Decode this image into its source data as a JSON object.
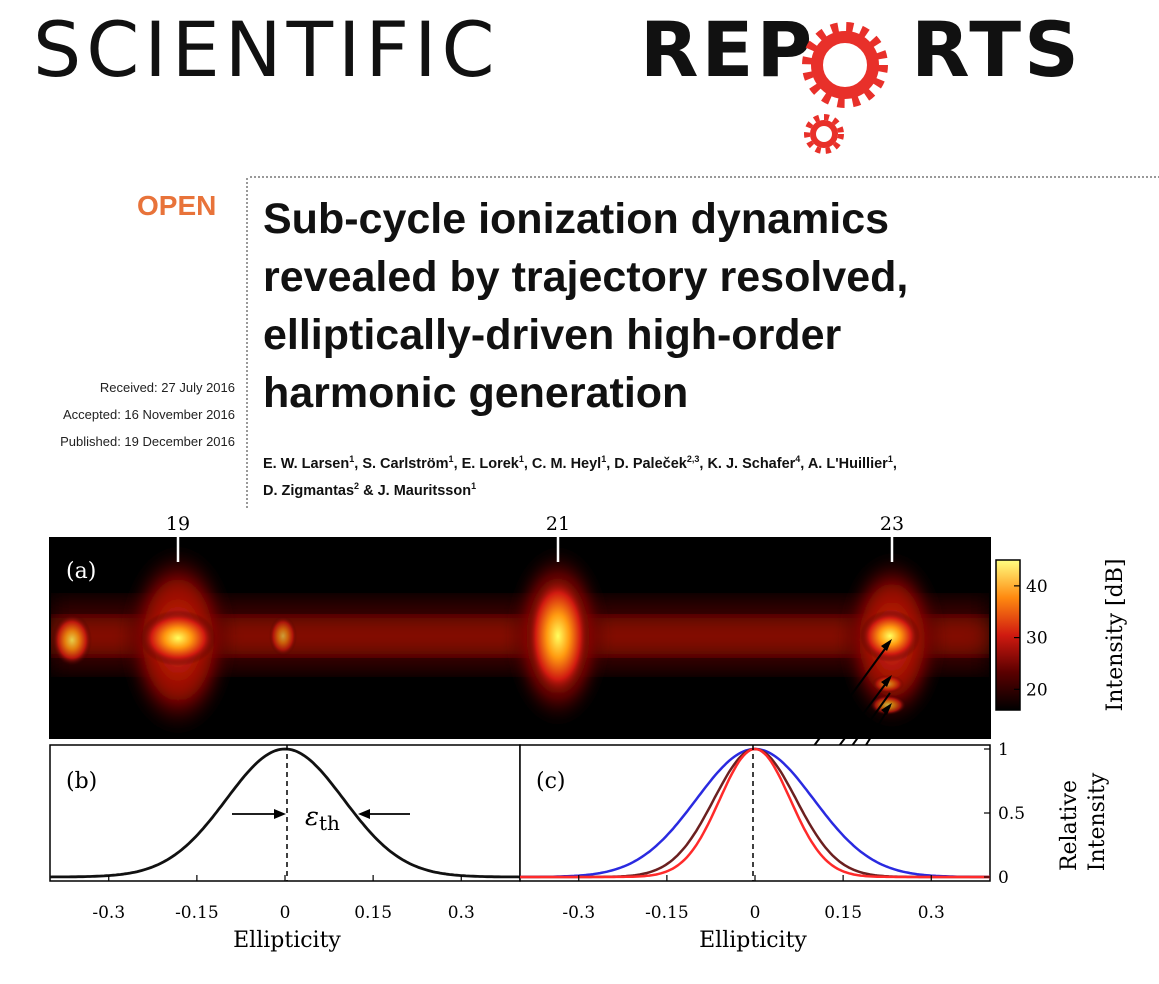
{
  "journal": {
    "name_light": "SCIENTIFIC",
    "name_bold": "REP",
    "name_bold_tail": "RTS",
    "brand_color": "#e8302a"
  },
  "article": {
    "access_badge": "OPEN",
    "title_lines": [
      "Sub-cycle ionization dynamics",
      "revealed by trajectory resolved,",
      "elliptically-driven high-order",
      "harmonic generation"
    ],
    "received": "Received: 27 July 2016",
    "accepted": "Accepted: 16 November 2016",
    "published": "Published: 19 December 2016",
    "authors_line1": [
      {
        "name": "E. W. Larsen",
        "aff": "1"
      },
      {
        "name": "S. Carlström",
        "aff": "1"
      },
      {
        "name": "E. Lorek",
        "aff": "1"
      },
      {
        "name": "C. M. Heyl",
        "aff": "1"
      },
      {
        "name": "D. Paleček",
        "aff": "2,3"
      },
      {
        "name": "K. J. Schafer",
        "aff": "4"
      },
      {
        "name": "A. L'Huillier",
        "aff": "1"
      }
    ],
    "authors_line2": [
      {
        "name": "D. Zigmantas",
        "aff": "2"
      },
      {
        "name": "J. Mauritsson",
        "aff": "1"
      }
    ]
  },
  "chart_data": [
    {
      "type": "heatmap",
      "panel_label": "(a)",
      "harmonic_labels": [
        "19",
        "21",
        "23"
      ],
      "colorbar": {
        "label": "Intensity [dB]",
        "ticks": [
          20,
          30,
          40
        ],
        "range": [
          16,
          45
        ]
      }
    },
    {
      "type": "line",
      "panel_label": "(b)",
      "xlabel": "Ellipticity",
      "xticks": [
        "-0.3",
        "-0.15",
        "0",
        "0.15",
        "0.3"
      ],
      "xlim": [
        -0.4,
        0.4
      ],
      "ylim": [
        0,
        1
      ],
      "annotation": "ε",
      "annotation_sub": "th",
      "series": [
        {
          "sigma": 0.1,
          "color": "#111111"
        }
      ]
    },
    {
      "type": "line",
      "panel_label": "(c)",
      "xlabel": "Ellipticity",
      "ylabel_line1": "Relative",
      "ylabel_line2": "Intensity",
      "xticks": [
        "-0.3",
        "-0.15",
        "0",
        "0.15",
        "0.3"
      ],
      "yticks": [
        "0",
        "0.5",
        "1"
      ],
      "xlim": [
        -0.4,
        0.4
      ],
      "ylim": [
        0,
        1
      ],
      "series": [
        {
          "sigma": 0.1,
          "color": "#2a2ae0"
        },
        {
          "sigma": 0.07,
          "color": "#6b2020"
        },
        {
          "sigma": 0.06,
          "color": "#ff2a2a"
        }
      ]
    }
  ]
}
